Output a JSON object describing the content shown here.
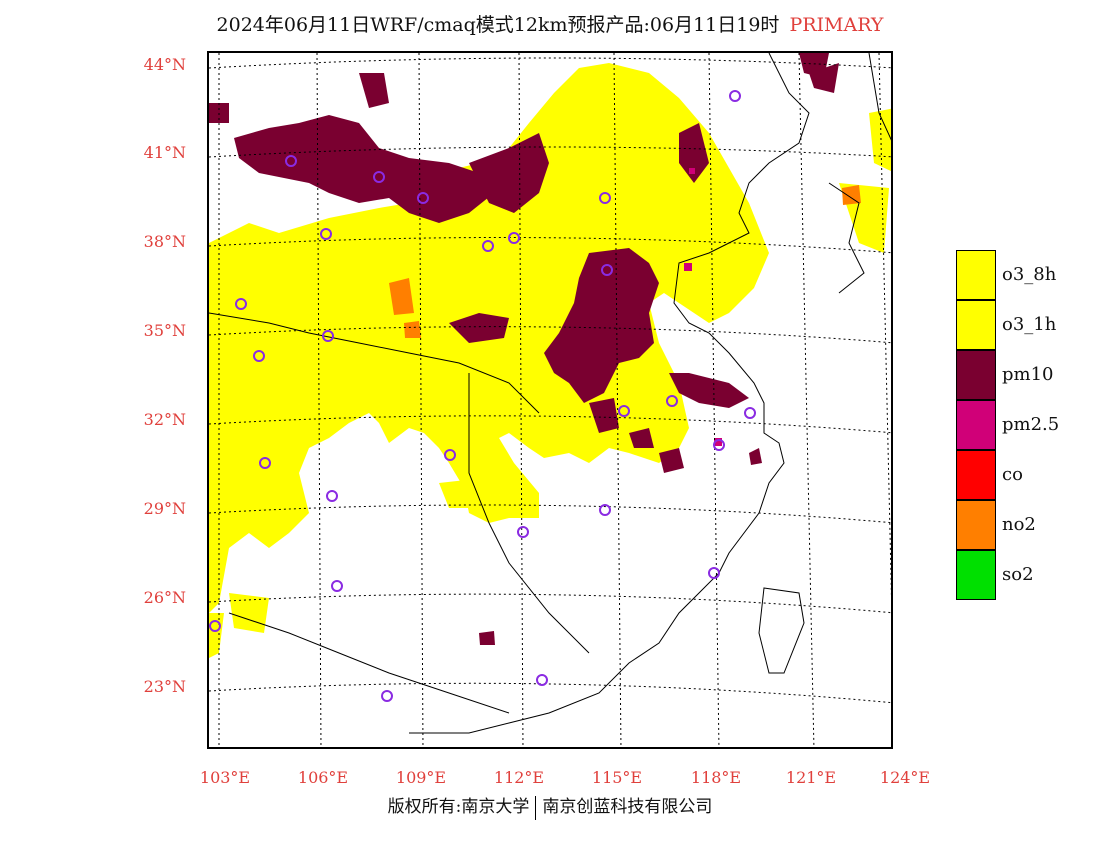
{
  "header": {
    "title": "2024年06月11日WRF/cmaq模式12km预报产品:06月11日19时",
    "tag": "PRIMARY"
  },
  "axes": {
    "lat_labels": [
      "44°N",
      "41°N",
      "38°N",
      "35°N",
      "32°N",
      "29°N",
      "26°N",
      "23°N"
    ],
    "lon_labels": [
      "103°E",
      "106°E",
      "109°E",
      "112°E",
      "115°E",
      "118°E",
      "121°E",
      "124°E"
    ]
  },
  "legend": {
    "items": [
      {
        "label": "o3_8h",
        "color": "#ffff00"
      },
      {
        "label": "o3_1h",
        "color": "#ffff00"
      },
      {
        "label": "pm10",
        "color": "#7a0030"
      },
      {
        "label": "pm2.5",
        "color": "#d00078"
      },
      {
        "label": "co",
        "color": "#ff0000"
      },
      {
        "label": "no2",
        "color": "#ff7f00"
      },
      {
        "label": "so2",
        "color": "#00e000"
      }
    ]
  },
  "colors": {
    "axis_label": "#e0403c",
    "ozone": "#ffff00",
    "pm10": "#7a0030",
    "no2": "#ff7f00",
    "station_marker": "#8a2be2"
  },
  "footer": {
    "left": "版权所有:南京大学",
    "right": "南京创蓝科技有限公司"
  }
}
